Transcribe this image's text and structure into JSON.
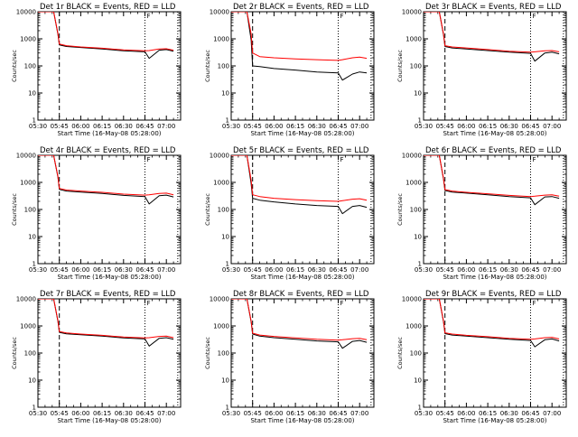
{
  "figure": {
    "background": "#ffffff",
    "colors": {
      "events": "#000000",
      "lld": "#ff0000",
      "axis": "#000000"
    }
  },
  "chart_data": [
    {
      "type": "line",
      "title": "Det 1r  BLACK = Events, RED = LLD",
      "xlabel": "Start Time (16-May-08 05:28:00)",
      "ylabel": "Counts/sec",
      "yscale": "log",
      "ylim": [
        1,
        10000
      ],
      "ytick_labels": [
        "1",
        "10",
        "100",
        "1000",
        "10000"
      ],
      "xlim": [
        "05:30",
        "07:10"
      ],
      "xtick_labels": [
        "05:30",
        "05:45",
        "06:00",
        "06:15",
        "06:30",
        "06:45",
        "07:00"
      ],
      "marker_label": "F",
      "vertical_lines": [
        {
          "x": "05:45",
          "style": "dashed"
        },
        {
          "x": "06:45",
          "style": "dotted"
        },
        {
          "x": "07:08",
          "style": "dotted"
        }
      ],
      "series": [
        {
          "name": "Events",
          "color": "#000000",
          "x": [
            "05:30",
            "05:41",
            "05:44",
            "05:45",
            "05:50",
            "06:00",
            "06:15",
            "06:30",
            "06:45",
            "06:48",
            "06:55",
            "07:00",
            "07:05"
          ],
          "values": [
            10000,
            10000,
            1500,
            600,
            520,
            480,
            420,
            360,
            330,
            190,
            380,
            400,
            350
          ]
        },
        {
          "name": "LLD",
          "color": "#ff0000",
          "x": [
            "05:30",
            "05:41",
            "05:44",
            "05:45",
            "05:50",
            "06:00",
            "06:15",
            "06:30",
            "06:45",
            "06:48",
            "06:55",
            "07:00",
            "07:05"
          ],
          "values": [
            10000,
            10000,
            1600,
            640,
            560,
            500,
            450,
            390,
            360,
            370,
            420,
            430,
            380
          ]
        }
      ]
    },
    {
      "type": "line",
      "title": "Det 2r  BLACK = Events, RED = LLD",
      "xlabel": "Start Time (16-May-08 05:28:00)",
      "ylabel": "Counts/sec",
      "yscale": "log",
      "ylim": [
        1,
        10000
      ],
      "ytick_labels": [
        "1",
        "10",
        "100",
        "1000",
        "10000"
      ],
      "xlim": [
        "05:30",
        "07:10"
      ],
      "xtick_labels": [
        "05:30",
        "05:45",
        "06:00",
        "06:15",
        "06:30",
        "06:45",
        "07:00"
      ],
      "marker_label": "F",
      "vertical_lines": [
        {
          "x": "05:45",
          "style": "dashed"
        },
        {
          "x": "06:45",
          "style": "dotted"
        },
        {
          "x": "07:08",
          "style": "dotted"
        }
      ],
      "series": [
        {
          "name": "Events",
          "color": "#000000",
          "x": [
            "05:30",
            "05:41",
            "05:44",
            "05:45",
            "05:50",
            "06:00",
            "06:15",
            "06:30",
            "06:45",
            "06:48",
            "06:55",
            "07:00",
            "07:05"
          ],
          "values": [
            10000,
            10000,
            900,
            100,
            95,
            80,
            70,
            60,
            55,
            30,
            50,
            60,
            55
          ]
        },
        {
          "name": "LLD",
          "color": "#ff0000",
          "x": [
            "05:30",
            "05:41",
            "05:44",
            "05:45",
            "05:50",
            "06:00",
            "06:15",
            "06:30",
            "06:45",
            "06:48",
            "06:55",
            "07:00",
            "07:05"
          ],
          "values": [
            10000,
            10000,
            1500,
            300,
            220,
            200,
            180,
            170,
            160,
            170,
            200,
            210,
            190
          ]
        }
      ]
    },
    {
      "type": "line",
      "title": "Det 3r  BLACK = Events, RED = LLD",
      "xlabel": "Start Time (16-May-08 05:28:00)",
      "ylabel": "Counts/sec",
      "yscale": "log",
      "ylim": [
        1,
        10000
      ],
      "ytick_labels": [
        "1",
        "10",
        "100",
        "1000",
        "10000"
      ],
      "xlim": [
        "05:30",
        "07:10"
      ],
      "xtick_labels": [
        "05:30",
        "05:45",
        "06:00",
        "06:15",
        "06:30",
        "06:45",
        "07:00"
      ],
      "marker_label": "F",
      "vertical_lines": [
        {
          "x": "05:45",
          "style": "dashed"
        },
        {
          "x": "06:45",
          "style": "dotted"
        },
        {
          "x": "07:08",
          "style": "dotted"
        }
      ],
      "series": [
        {
          "name": "Events",
          "color": "#000000",
          "x": [
            "05:30",
            "05:41",
            "05:44",
            "05:45",
            "05:50",
            "06:00",
            "06:15",
            "06:30",
            "06:45",
            "06:48",
            "06:55",
            "07:00",
            "07:05"
          ],
          "values": [
            10000,
            10000,
            1400,
            520,
            460,
            420,
            370,
            320,
            290,
            150,
            300,
            320,
            280
          ]
        },
        {
          "name": "LLD",
          "color": "#ff0000",
          "x": [
            "05:30",
            "05:41",
            "05:44",
            "05:45",
            "05:50",
            "06:00",
            "06:15",
            "06:30",
            "06:45",
            "06:48",
            "06:55",
            "07:00",
            "07:05"
          ],
          "values": [
            10000,
            10000,
            1500,
            560,
            500,
            460,
            400,
            350,
            320,
            330,
            360,
            370,
            330
          ]
        }
      ]
    },
    {
      "type": "line",
      "title": "Det 4r  BLACK = Events, RED = LLD",
      "xlabel": "Start Time (16-May-08 05:28:00)",
      "ylabel": "Counts/sec",
      "yscale": "log",
      "ylim": [
        1,
        10000
      ],
      "ytick_labels": [
        "1",
        "10",
        "100",
        "1000",
        "10000"
      ],
      "xlim": [
        "05:30",
        "07:10"
      ],
      "xtick_labels": [
        "05:30",
        "05:45",
        "06:00",
        "06:15",
        "06:30",
        "06:45",
        "07:00"
      ],
      "marker_label": "F",
      "vertical_lines": [
        {
          "x": "05:45",
          "style": "dashed"
        },
        {
          "x": "06:45",
          "style": "dotted"
        },
        {
          "x": "07:08",
          "style": "dotted"
        }
      ],
      "series": [
        {
          "name": "Events",
          "color": "#000000",
          "x": [
            "05:30",
            "05:41",
            "05:44",
            "05:45",
            "05:50",
            "06:00",
            "06:15",
            "06:30",
            "06:45",
            "06:48",
            "06:55",
            "07:00",
            "07:05"
          ],
          "values": [
            10000,
            10000,
            1600,
            550,
            480,
            440,
            390,
            330,
            300,
            160,
            320,
            340,
            290
          ]
        },
        {
          "name": "LLD",
          "color": "#ff0000",
          "x": [
            "05:30",
            "05:41",
            "05:44",
            "05:45",
            "05:50",
            "06:00",
            "06:15",
            "06:30",
            "06:45",
            "06:48",
            "06:55",
            "07:00",
            "07:05"
          ],
          "values": [
            10000,
            10000,
            1700,
            600,
            520,
            480,
            430,
            370,
            340,
            350,
            390,
            400,
            350
          ]
        }
      ]
    },
    {
      "type": "line",
      "title": "Det 5r  BLACK = Events, RED = LLD",
      "xlabel": "Start Time (16-May-08 05:28:00)",
      "ylabel": "Counts/sec",
      "yscale": "log",
      "ylim": [
        1,
        10000
      ],
      "ytick_labels": [
        "1",
        "10",
        "100",
        "1000",
        "10000"
      ],
      "xlim": [
        "05:30",
        "07:10"
      ],
      "xtick_labels": [
        "05:30",
        "05:45",
        "06:00",
        "06:15",
        "06:30",
        "06:45",
        "07:00"
      ],
      "marker_label": "F",
      "vertical_lines": [
        {
          "x": "05:45",
          "style": "dashed"
        },
        {
          "x": "06:45",
          "style": "dotted"
        },
        {
          "x": "07:08",
          "style": "dotted"
        }
      ],
      "series": [
        {
          "name": "Events",
          "color": "#000000",
          "x": [
            "05:30",
            "05:41",
            "05:44",
            "05:45",
            "05:50",
            "06:00",
            "06:15",
            "06:30",
            "06:45",
            "06:48",
            "06:55",
            "07:00",
            "07:05"
          ],
          "values": [
            10000,
            10000,
            900,
            260,
            220,
            190,
            160,
            140,
            130,
            70,
            130,
            140,
            120
          ]
        },
        {
          "name": "LLD",
          "color": "#ff0000",
          "x": [
            "05:30",
            "05:41",
            "05:44",
            "05:45",
            "05:50",
            "06:00",
            "06:15",
            "06:30",
            "06:45",
            "06:48",
            "06:55",
            "07:00",
            "07:05"
          ],
          "values": [
            10000,
            10000,
            1200,
            350,
            300,
            260,
            230,
            210,
            200,
            210,
            240,
            250,
            220
          ]
        }
      ]
    },
    {
      "type": "line",
      "title": "Det 6r  BLACK = Events, RED = LLD",
      "xlabel": "Start Time (16-May-08 05:28:00)",
      "ylabel": "Counts/sec",
      "yscale": "log",
      "ylim": [
        1,
        10000
      ],
      "ytick_labels": [
        "1",
        "10",
        "100",
        "1000",
        "10000"
      ],
      "xlim": [
        "05:30",
        "07:10"
      ],
      "xtick_labels": [
        "05:30",
        "05:45",
        "06:00",
        "06:15",
        "06:30",
        "06:45",
        "07:00"
      ],
      "marker_label": "F",
      "vertical_lines": [
        {
          "x": "05:45",
          "style": "dashed"
        },
        {
          "x": "06:45",
          "style": "dotted"
        },
        {
          "x": "07:08",
          "style": "dotted"
        }
      ],
      "series": [
        {
          "name": "Events",
          "color": "#000000",
          "x": [
            "05:30",
            "05:41",
            "05:44",
            "05:45",
            "05:50",
            "06:00",
            "06:15",
            "06:30",
            "06:45",
            "06:48",
            "06:55",
            "07:00",
            "07:05"
          ],
          "values": [
            10000,
            10000,
            1300,
            500,
            440,
            400,
            350,
            300,
            270,
            150,
            290,
            300,
            260
          ]
        },
        {
          "name": "LLD",
          "color": "#ff0000",
          "x": [
            "05:30",
            "05:41",
            "05:44",
            "05:45",
            "05:50",
            "06:00",
            "06:15",
            "06:30",
            "06:45",
            "06:48",
            "06:55",
            "07:00",
            "07:05"
          ],
          "values": [
            10000,
            10000,
            1400,
            540,
            480,
            430,
            380,
            330,
            300,
            310,
            340,
            350,
            310
          ]
        }
      ]
    },
    {
      "type": "line",
      "title": "Det 7r  BLACK = Events, RED = LLD",
      "xlabel": "Start Time (16-May-08 05:28:00)",
      "ylabel": "Counts/sec",
      "yscale": "log",
      "ylim": [
        1,
        10000
      ],
      "ytick_labels": [
        "1",
        "10",
        "100",
        "1000",
        "10000"
      ],
      "xlim": [
        "05:30",
        "07:10"
      ],
      "xtick_labels": [
        "05:30",
        "05:45",
        "06:00",
        "06:15",
        "06:30",
        "06:45",
        "07:00"
      ],
      "marker_label": "F",
      "vertical_lines": [
        {
          "x": "05:45",
          "style": "dashed"
        },
        {
          "x": "06:45",
          "style": "dotted"
        },
        {
          "x": "07:08",
          "style": "dotted"
        }
      ],
      "series": [
        {
          "name": "Events",
          "color": "#000000",
          "x": [
            "05:30",
            "05:41",
            "05:44",
            "05:45",
            "05:50",
            "06:00",
            "06:15",
            "06:30",
            "06:45",
            "06:48",
            "06:55",
            "07:00",
            "07:05"
          ],
          "values": [
            10000,
            10000,
            1500,
            580,
            510,
            470,
            420,
            360,
            330,
            180,
            350,
            370,
            320
          ]
        },
        {
          "name": "LLD",
          "color": "#ff0000",
          "x": [
            "05:30",
            "05:41",
            "05:44",
            "05:45",
            "05:50",
            "06:00",
            "06:15",
            "06:30",
            "06:45",
            "06:48",
            "06:55",
            "07:00",
            "07:05"
          ],
          "values": [
            10000,
            10000,
            1600,
            620,
            550,
            500,
            450,
            390,
            360,
            370,
            410,
            420,
            370
          ]
        }
      ]
    },
    {
      "type": "line",
      "title": "Det 8r  BLACK = Events, RED = LLD",
      "xlabel": "Start Time (16-May-08 05:28:00)",
      "ylabel": "Counts/sec",
      "yscale": "log",
      "ylim": [
        1,
        10000
      ],
      "ytick_labels": [
        "1",
        "10",
        "100",
        "1000",
        "10000"
      ],
      "xlim": [
        "05:30",
        "07:10"
      ],
      "xtick_labels": [
        "05:30",
        "05:45",
        "06:00",
        "06:15",
        "06:30",
        "06:45",
        "07:00"
      ],
      "marker_label": "F",
      "vertical_lines": [
        {
          "x": "05:45",
          "style": "dashed"
        },
        {
          "x": "06:45",
          "style": "dotted"
        },
        {
          "x": "07:08",
          "style": "dotted"
        }
      ],
      "series": [
        {
          "name": "Events",
          "color": "#000000",
          "x": [
            "05:30",
            "05:41",
            "05:44",
            "05:45",
            "05:50",
            "06:00",
            "06:15",
            "06:30",
            "06:45",
            "06:48",
            "06:55",
            "07:00",
            "07:05"
          ],
          "values": [
            10000,
            10000,
            1400,
            500,
            420,
            370,
            320,
            280,
            260,
            150,
            270,
            290,
            250
          ]
        },
        {
          "name": "LLD",
          "color": "#ff0000",
          "x": [
            "05:30",
            "05:41",
            "05:44",
            "05:45",
            "05:50",
            "06:00",
            "06:15",
            "06:30",
            "06:45",
            "06:48",
            "06:55",
            "07:00",
            "07:05"
          ],
          "values": [
            10000,
            10000,
            1500,
            540,
            460,
            410,
            360,
            320,
            300,
            310,
            340,
            350,
            310
          ]
        }
      ]
    },
    {
      "type": "line",
      "title": "Det 9r  BLACK = Events, RED = LLD",
      "xlabel": "Start Time (16-May-08 05:28:00)",
      "ylabel": "Counts/sec",
      "yscale": "log",
      "ylim": [
        1,
        10000
      ],
      "ytick_labels": [
        "1",
        "10",
        "100",
        "1000",
        "10000"
      ],
      "xlim": [
        "05:30",
        "07:10"
      ],
      "xtick_labels": [
        "05:30",
        "05:45",
        "06:00",
        "06:15",
        "06:30",
        "06:45",
        "07:00"
      ],
      "marker_label": "F",
      "vertical_lines": [
        {
          "x": "05:45",
          "style": "dashed"
        },
        {
          "x": "06:45",
          "style": "dotted"
        },
        {
          "x": "07:08",
          "style": "dotted"
        }
      ],
      "series": [
        {
          "name": "Events",
          "color": "#000000",
          "x": [
            "05:30",
            "05:41",
            "05:44",
            "05:45",
            "05:50",
            "06:00",
            "06:15",
            "06:30",
            "06:45",
            "06:48",
            "06:55",
            "07:00",
            "07:05"
          ],
          "values": [
            10000,
            10000,
            1400,
            520,
            460,
            420,
            370,
            320,
            290,
            170,
            310,
            330,
            280
          ]
        },
        {
          "name": "LLD",
          "color": "#ff0000",
          "x": [
            "05:30",
            "05:41",
            "05:44",
            "05:45",
            "05:50",
            "06:00",
            "06:15",
            "06:30",
            "06:45",
            "06:48",
            "06:55",
            "07:00",
            "07:05"
          ],
          "values": [
            10000,
            10000,
            1500,
            560,
            500,
            450,
            400,
            350,
            320,
            330,
            370,
            380,
            330
          ]
        }
      ]
    }
  ]
}
